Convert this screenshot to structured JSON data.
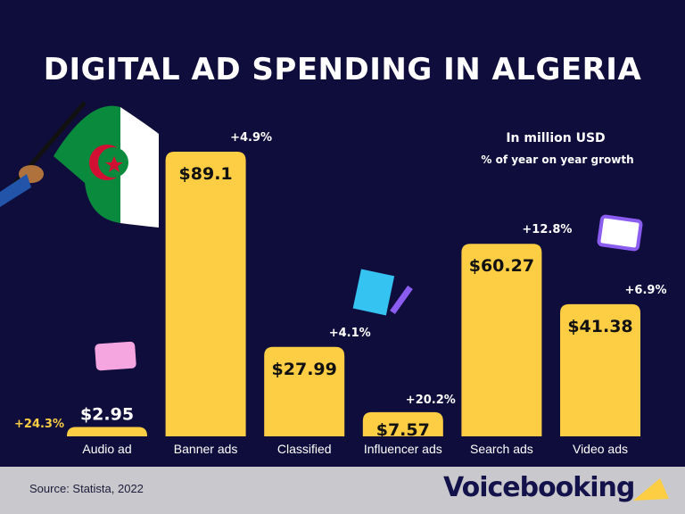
{
  "chart_data": {
    "type": "bar",
    "title": "DIGITAL AD SPENDING IN ALGERIA",
    "subtitle": "In million USD",
    "subtitle2": "% of year on year growth",
    "categories": [
      "Audio ad",
      "Banner ads",
      "Classified",
      "Influencer ads",
      "Search ads",
      "Video ads"
    ],
    "values": [
      2.95,
      89.1,
      27.99,
      7.57,
      60.27,
      41.38
    ],
    "value_labels": [
      "$2.95",
      "$89.1",
      "$27.99",
      "$7.57",
      "$60.27",
      "$41.38"
    ],
    "growth_labels": [
      "+24.3%",
      "+4.9%",
      "+4.1%",
      "+20.2%",
      "+12.8%",
      "+6.9%"
    ],
    "ylim": [
      0,
      95
    ],
    "bar_color": "#fdce43",
    "background": "#0f0d3c"
  },
  "footer": {
    "source": "Source: Statista, 2022",
    "brand": "Voicebooking"
  }
}
